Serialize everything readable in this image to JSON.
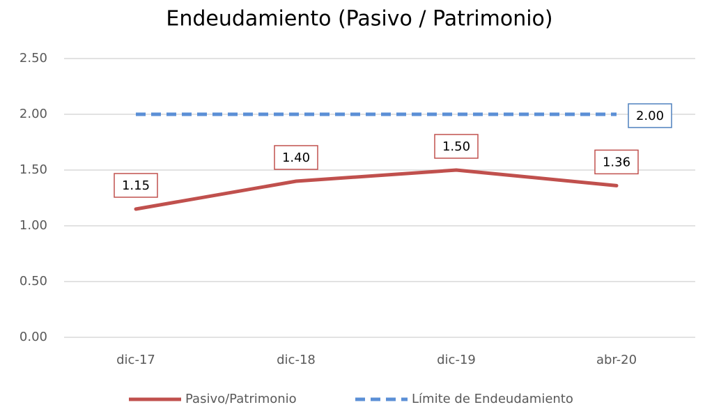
{
  "chart_data": {
    "type": "line",
    "title": "Endeudamiento (Pasivo / Patrimonio)",
    "categories": [
      "dic-17",
      "dic-18",
      "dic-19",
      "abr-20"
    ],
    "series": [
      {
        "name": "Pasivo/Patrimonio",
        "color": "#c0504d",
        "values": [
          1.15,
          1.4,
          1.5,
          1.36
        ],
        "value_labels": [
          "1.15",
          "1.40",
          "1.50",
          "1.36"
        ]
      },
      {
        "name": "Límite de Endeudamiento",
        "color": "#5b8fd6",
        "dashed": true,
        "values": [
          2,
          2,
          2,
          2
        ],
        "value_labels": [
          null,
          null,
          null,
          "2.00"
        ]
      }
    ],
    "ylim": [
      0,
      2.5
    ],
    "yticks": [
      {
        "value": 0,
        "label": "0.00"
      },
      {
        "value": 0.5,
        "label": "0.50"
      },
      {
        "value": 1,
        "label": "1.00"
      },
      {
        "value": 1.5,
        "label": "1.50"
      },
      {
        "value": 2,
        "label": "2.00"
      },
      {
        "value": 2.5,
        "label": "2.50"
      }
    ],
    "grid": true,
    "legend": "bottom"
  }
}
